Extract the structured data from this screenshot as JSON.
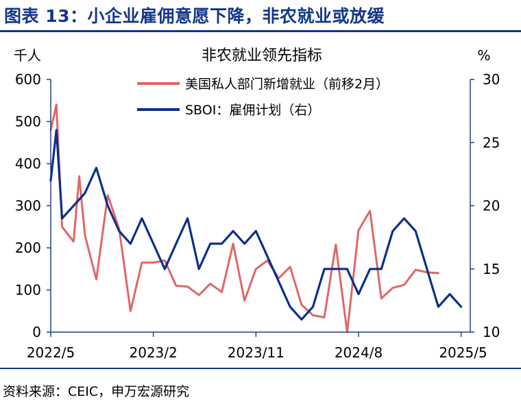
{
  "figure": {
    "title": "图表 13：小企业雇佣意愿下降，非农就业或放缓",
    "source": "资料来源：CEIC，申万宏源研究"
  },
  "chart_data": {
    "type": "line",
    "title": "非农就业领先指标",
    "y_left_label": "千人",
    "y_right_label": "%",
    "y_left_lim": [
      0,
      600
    ],
    "y_right_lim": [
      10,
      30
    ],
    "y_left_ticks": [
      "0",
      "100",
      "200",
      "300",
      "400",
      "500",
      "600"
    ],
    "y_right_ticks": [
      "10",
      "15",
      "20",
      "25",
      "30"
    ],
    "x_tick_labels": [
      {
        "index": 0,
        "label": "2022/5"
      },
      {
        "index": 9,
        "label": "2023/2"
      },
      {
        "index": 18,
        "label": "2023/11"
      },
      {
        "index": 27,
        "label": "2024/8"
      },
      {
        "index": 36,
        "label": "2025/5"
      }
    ],
    "legend_position": "top-right",
    "grid": false,
    "colors": {
      "axis": "#1f3f8a",
      "series_private": "#e06666",
      "series_sboi": "#0b2f8a"
    },
    "series": [
      {
        "name": "美国私人部门新增就业（前移2月）",
        "axis": "left",
        "color": "#e06666",
        "x": [
          0,
          0.5,
          1,
          2,
          2.5,
          3,
          4,
          5,
          6,
          7,
          8,
          9,
          10,
          11,
          12,
          13,
          14,
          15,
          16,
          17,
          18,
          19,
          20,
          21,
          22,
          23,
          24,
          25,
          26,
          27,
          28,
          29,
          30,
          31,
          32,
          33,
          34
        ],
        "values": [
          480,
          540,
          250,
          215,
          370,
          230,
          125,
          325,
          245,
          50,
          165,
          165,
          170,
          110,
          108,
          88,
          115,
          95,
          210,
          75,
          150,
          170,
          128,
          155,
          65,
          40,
          35,
          208,
          0,
          242,
          288,
          80,
          105,
          112,
          148,
          142,
          140
        ]
      },
      {
        "name": "SBOI：雇佣计划（右）",
        "axis": "right",
        "color": "#0b2f8a",
        "x": [
          0,
          0.5,
          1,
          2,
          3,
          4,
          5,
          6,
          7,
          8,
          9,
          10,
          11,
          12,
          13,
          14,
          15,
          16,
          17,
          18,
          19,
          20,
          21,
          22,
          23,
          24,
          25,
          26,
          27,
          28,
          29,
          30,
          31,
          32,
          33,
          34,
          35,
          36
        ],
        "values": [
          22,
          26,
          19,
          20,
          21,
          23,
          20,
          18,
          17,
          19,
          17,
          15,
          17,
          19,
          15,
          17,
          17,
          18,
          17,
          18,
          16,
          14,
          12,
          11,
          12,
          15,
          15,
          15,
          13,
          15,
          15,
          18,
          19,
          18,
          15,
          12,
          13,
          12
        ]
      }
    ]
  }
}
